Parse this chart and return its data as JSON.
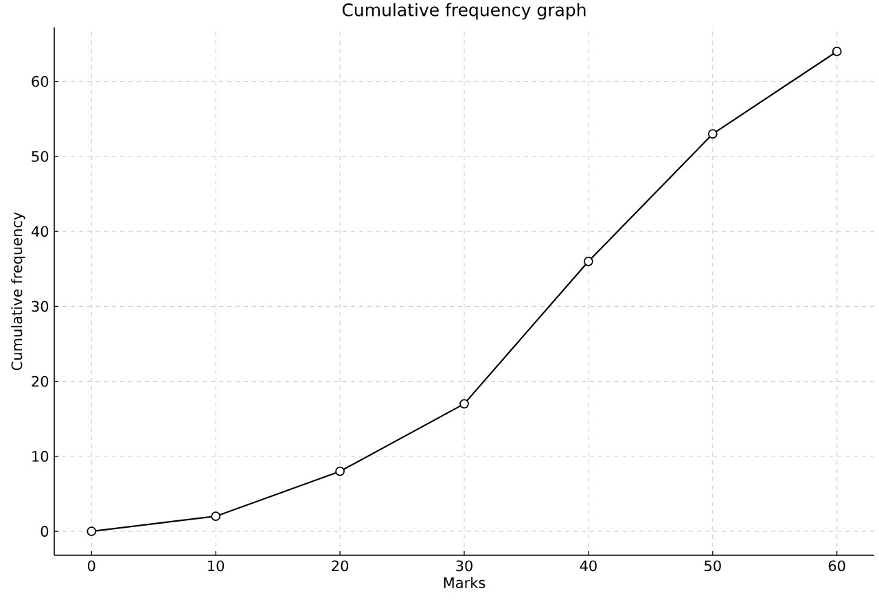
{
  "chart_data": {
    "type": "line",
    "title": "Cumulative frequency graph",
    "xlabel": "Marks",
    "ylabel": "Cumulative frequency",
    "x": [
      0,
      10,
      20,
      30,
      40,
      50,
      60
    ],
    "values": [
      0,
      2,
      8,
      17,
      36,
      53,
      64
    ],
    "color": "#000000",
    "marker": "circle",
    "line_style": "solid",
    "grid": true,
    "xlim": [
      -3,
      63
    ],
    "ylim": [
      -3.2,
      67.2
    ],
    "xticks": [
      0,
      10,
      20,
      30,
      40,
      50,
      60
    ],
    "yticks": [
      0,
      10,
      20,
      30,
      40,
      50,
      60
    ]
  }
}
